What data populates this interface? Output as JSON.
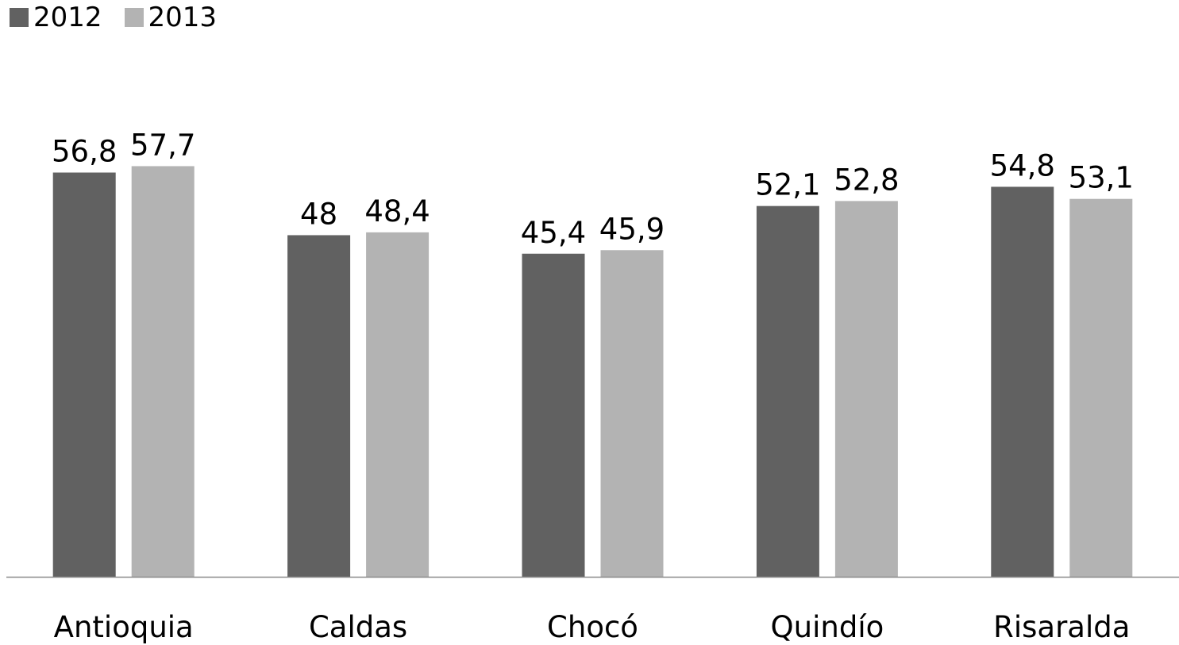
{
  "colors": {
    "series_2012": "#616161",
    "series_2013": "#b3b3b3",
    "axis": "#8c8c8c"
  },
  "chart_data": {
    "type": "bar",
    "categories": [
      "Antioquia",
      "Caldas",
      "Chocó",
      "Quindío",
      "Risaralda"
    ],
    "series": [
      {
        "name": "2012",
        "values": [
          56.8,
          48,
          45.4,
          52.1,
          54.8
        ],
        "labels": [
          "56,8",
          "48",
          "45,4",
          "52,1",
          "54,8"
        ]
      },
      {
        "name": "2013",
        "values": [
          57.7,
          48.4,
          45.9,
          52.8,
          53.1
        ],
        "labels": [
          "57,7",
          "48,4",
          "45,9",
          "52,8",
          "53,1"
        ]
      }
    ],
    "title": "",
    "xlabel": "",
    "ylabel": "",
    "ylim": [
      0,
      63
    ],
    "grid": false,
    "legend": "top-left",
    "data_labels": true
  }
}
